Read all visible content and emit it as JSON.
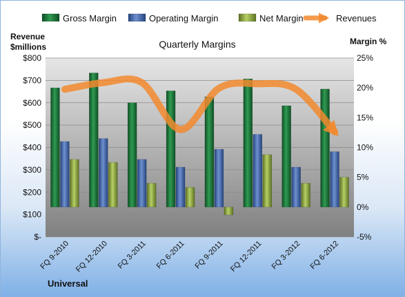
{
  "chart_data": {
    "type": "bar",
    "title": "Quarterly Margins",
    "left_axis_title": [
      "Revenue",
      "$millions"
    ],
    "right_axis_title": "Margin %",
    "footer": "Universal",
    "categories": [
      "FQ 9-2010",
      "FQ 12-2010",
      "FQ 3-2011",
      "FQ 6-2011",
      "FQ 9-2011",
      "FQ 12-2011",
      "FQ 3-2012",
      "FQ 6-2012"
    ],
    "left_axis": {
      "ticks": [
        "$-",
        "$100",
        "$200",
        "$300",
        "$400",
        "$500",
        "$600",
        "$700",
        "$800"
      ],
      "ylim": [
        0,
        800
      ]
    },
    "right_axis": {
      "ticks": [
        "-5%",
        "0%",
        "5%",
        "10%",
        "15%",
        "20%",
        "25%"
      ],
      "ylim": [
        -5,
        25
      ]
    },
    "series": [
      {
        "name": "Gross Margin",
        "type": "bar",
        "axis": "right",
        "color": "#1e7a3c",
        "values": [
          20.0,
          22.5,
          17.5,
          19.5,
          18.5,
          21.5,
          17.0,
          19.8
        ]
      },
      {
        "name": "Operating Margin",
        "type": "bar",
        "axis": "right",
        "color": "#3f63a8",
        "values": [
          11.0,
          11.5,
          8.0,
          6.7,
          9.7,
          12.2,
          6.7,
          9.3
        ]
      },
      {
        "name": "Net Margin",
        "type": "bar",
        "axis": "right",
        "color": "#8ea83e",
        "values": [
          8.0,
          7.5,
          4.0,
          3.3,
          -1.3,
          8.8,
          4.0,
          5.0
        ]
      },
      {
        "name": "Revenues",
        "type": "line",
        "axis": "left",
        "color": "#f28a2e",
        "values": [
          660,
          690,
          690,
          480,
          665,
          685,
          660,
          470
        ]
      }
    ],
    "legend_position": "top",
    "grid": true
  }
}
